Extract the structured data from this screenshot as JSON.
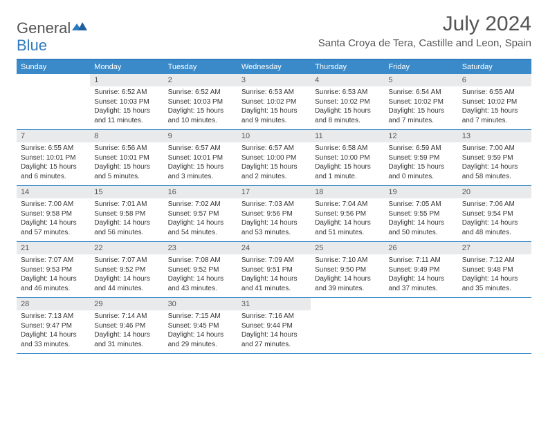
{
  "logo": {
    "part1": "General",
    "part2": "Blue"
  },
  "title": "July 2024",
  "location": "Santa Croya de Tera, Castille and Leon, Spain",
  "colors": {
    "header_bar": "#3a8ac9",
    "top_rule": "#2f7bbf",
    "daynum_bg": "#e9eaeb",
    "text": "#333333",
    "muted": "#555555",
    "white": "#ffffff"
  },
  "weekdays": [
    "Sunday",
    "Monday",
    "Tuesday",
    "Wednesday",
    "Thursday",
    "Friday",
    "Saturday"
  ],
  "weeks": [
    [
      {
        "n": "",
        "sunrise": "",
        "sunset": "",
        "daylight": ""
      },
      {
        "n": "1",
        "sunrise": "Sunrise: 6:52 AM",
        "sunset": "Sunset: 10:03 PM",
        "daylight": "Daylight: 15 hours and 11 minutes."
      },
      {
        "n": "2",
        "sunrise": "Sunrise: 6:52 AM",
        "sunset": "Sunset: 10:03 PM",
        "daylight": "Daylight: 15 hours and 10 minutes."
      },
      {
        "n": "3",
        "sunrise": "Sunrise: 6:53 AM",
        "sunset": "Sunset: 10:02 PM",
        "daylight": "Daylight: 15 hours and 9 minutes."
      },
      {
        "n": "4",
        "sunrise": "Sunrise: 6:53 AM",
        "sunset": "Sunset: 10:02 PM",
        "daylight": "Daylight: 15 hours and 8 minutes."
      },
      {
        "n": "5",
        "sunrise": "Sunrise: 6:54 AM",
        "sunset": "Sunset: 10:02 PM",
        "daylight": "Daylight: 15 hours and 7 minutes."
      },
      {
        "n": "6",
        "sunrise": "Sunrise: 6:55 AM",
        "sunset": "Sunset: 10:02 PM",
        "daylight": "Daylight: 15 hours and 7 minutes."
      }
    ],
    [
      {
        "n": "7",
        "sunrise": "Sunrise: 6:55 AM",
        "sunset": "Sunset: 10:01 PM",
        "daylight": "Daylight: 15 hours and 6 minutes."
      },
      {
        "n": "8",
        "sunrise": "Sunrise: 6:56 AM",
        "sunset": "Sunset: 10:01 PM",
        "daylight": "Daylight: 15 hours and 5 minutes."
      },
      {
        "n": "9",
        "sunrise": "Sunrise: 6:57 AM",
        "sunset": "Sunset: 10:01 PM",
        "daylight": "Daylight: 15 hours and 3 minutes."
      },
      {
        "n": "10",
        "sunrise": "Sunrise: 6:57 AM",
        "sunset": "Sunset: 10:00 PM",
        "daylight": "Daylight: 15 hours and 2 minutes."
      },
      {
        "n": "11",
        "sunrise": "Sunrise: 6:58 AM",
        "sunset": "Sunset: 10:00 PM",
        "daylight": "Daylight: 15 hours and 1 minute."
      },
      {
        "n": "12",
        "sunrise": "Sunrise: 6:59 AM",
        "sunset": "Sunset: 9:59 PM",
        "daylight": "Daylight: 15 hours and 0 minutes."
      },
      {
        "n": "13",
        "sunrise": "Sunrise: 7:00 AM",
        "sunset": "Sunset: 9:59 PM",
        "daylight": "Daylight: 14 hours and 58 minutes."
      }
    ],
    [
      {
        "n": "14",
        "sunrise": "Sunrise: 7:00 AM",
        "sunset": "Sunset: 9:58 PM",
        "daylight": "Daylight: 14 hours and 57 minutes."
      },
      {
        "n": "15",
        "sunrise": "Sunrise: 7:01 AM",
        "sunset": "Sunset: 9:58 PM",
        "daylight": "Daylight: 14 hours and 56 minutes."
      },
      {
        "n": "16",
        "sunrise": "Sunrise: 7:02 AM",
        "sunset": "Sunset: 9:57 PM",
        "daylight": "Daylight: 14 hours and 54 minutes."
      },
      {
        "n": "17",
        "sunrise": "Sunrise: 7:03 AM",
        "sunset": "Sunset: 9:56 PM",
        "daylight": "Daylight: 14 hours and 53 minutes."
      },
      {
        "n": "18",
        "sunrise": "Sunrise: 7:04 AM",
        "sunset": "Sunset: 9:56 PM",
        "daylight": "Daylight: 14 hours and 51 minutes."
      },
      {
        "n": "19",
        "sunrise": "Sunrise: 7:05 AM",
        "sunset": "Sunset: 9:55 PM",
        "daylight": "Daylight: 14 hours and 50 minutes."
      },
      {
        "n": "20",
        "sunrise": "Sunrise: 7:06 AM",
        "sunset": "Sunset: 9:54 PM",
        "daylight": "Daylight: 14 hours and 48 minutes."
      }
    ],
    [
      {
        "n": "21",
        "sunrise": "Sunrise: 7:07 AM",
        "sunset": "Sunset: 9:53 PM",
        "daylight": "Daylight: 14 hours and 46 minutes."
      },
      {
        "n": "22",
        "sunrise": "Sunrise: 7:07 AM",
        "sunset": "Sunset: 9:52 PM",
        "daylight": "Daylight: 14 hours and 44 minutes."
      },
      {
        "n": "23",
        "sunrise": "Sunrise: 7:08 AM",
        "sunset": "Sunset: 9:52 PM",
        "daylight": "Daylight: 14 hours and 43 minutes."
      },
      {
        "n": "24",
        "sunrise": "Sunrise: 7:09 AM",
        "sunset": "Sunset: 9:51 PM",
        "daylight": "Daylight: 14 hours and 41 minutes."
      },
      {
        "n": "25",
        "sunrise": "Sunrise: 7:10 AM",
        "sunset": "Sunset: 9:50 PM",
        "daylight": "Daylight: 14 hours and 39 minutes."
      },
      {
        "n": "26",
        "sunrise": "Sunrise: 7:11 AM",
        "sunset": "Sunset: 9:49 PM",
        "daylight": "Daylight: 14 hours and 37 minutes."
      },
      {
        "n": "27",
        "sunrise": "Sunrise: 7:12 AM",
        "sunset": "Sunset: 9:48 PM",
        "daylight": "Daylight: 14 hours and 35 minutes."
      }
    ],
    [
      {
        "n": "28",
        "sunrise": "Sunrise: 7:13 AM",
        "sunset": "Sunset: 9:47 PM",
        "daylight": "Daylight: 14 hours and 33 minutes."
      },
      {
        "n": "29",
        "sunrise": "Sunrise: 7:14 AM",
        "sunset": "Sunset: 9:46 PM",
        "daylight": "Daylight: 14 hours and 31 minutes."
      },
      {
        "n": "30",
        "sunrise": "Sunrise: 7:15 AM",
        "sunset": "Sunset: 9:45 PM",
        "daylight": "Daylight: 14 hours and 29 minutes."
      },
      {
        "n": "31",
        "sunrise": "Sunrise: 7:16 AM",
        "sunset": "Sunset: 9:44 PM",
        "daylight": "Daylight: 14 hours and 27 minutes."
      },
      {
        "n": "",
        "sunrise": "",
        "sunset": "",
        "daylight": ""
      },
      {
        "n": "",
        "sunrise": "",
        "sunset": "",
        "daylight": ""
      },
      {
        "n": "",
        "sunrise": "",
        "sunset": "",
        "daylight": ""
      }
    ]
  ]
}
